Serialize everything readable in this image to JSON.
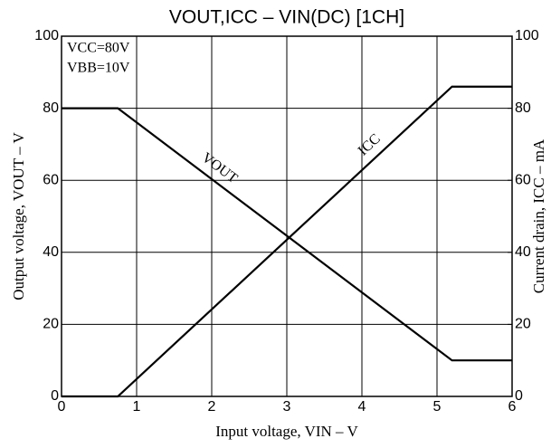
{
  "chart_data": {
    "type": "line",
    "title": "VOUT,ICC – VIN(DC) [1CH]",
    "x_label": "Input voltage, VIN – V",
    "y_label": "Output voltage, VOUT – V",
    "y2_label": "Current drain, ICC – mA",
    "annotations": [
      "VCC=80V",
      "VBB=10V"
    ],
    "x": [
      0,
      0.75,
      5.2,
      6
    ],
    "series": [
      {
        "name": "VOUT",
        "color": "#000000",
        "values": [
          80,
          80,
          10,
          10
        ]
      },
      {
        "name": "ICC",
        "color": "#000000",
        "values": [
          0,
          0,
          86,
          86
        ],
        "axis": "y2"
      }
    ],
    "xlim": [
      0,
      6
    ],
    "xticks": [
      0,
      1,
      2,
      3,
      4,
      5,
      6
    ],
    "ylim": [
      0,
      100
    ],
    "yticks": [
      0,
      20,
      40,
      60,
      80,
      100
    ],
    "y2lim": [
      0,
      100
    ],
    "y2ticks": [
      0,
      20,
      40,
      60,
      80,
      100
    ],
    "grid": true
  }
}
